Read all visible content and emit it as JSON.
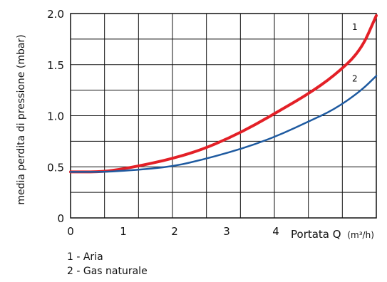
{
  "chart_data": {
    "type": "line",
    "title": "",
    "ylabel": "media perdita di pressione (mbar)",
    "xlabel": "Portata Q",
    "xlabel_unit": "(m³/h)",
    "xlim": [
      0,
      5.8
    ],
    "ylim": [
      0,
      2.0
    ],
    "x_ticks": [
      "0",
      "1",
      "2",
      "3",
      "4"
    ],
    "y_ticks": [
      "0",
      "0.5",
      "1.0",
      "1.5",
      "2.0"
    ],
    "grid": true,
    "series": [
      {
        "name": "1",
        "color": "#e32027",
        "x": [
          0,
          0.6,
          1.0,
          1.5,
          2.0,
          2.5,
          3.0,
          3.5,
          4.0,
          4.5,
          5.0,
          5.5,
          5.8
        ],
        "y": [
          0.45,
          0.45,
          0.48,
          0.53,
          0.59,
          0.67,
          0.78,
          0.91,
          1.06,
          1.21,
          1.39,
          1.63,
          1.98
        ]
      },
      {
        "name": "2",
        "color": "#1e5aa0",
        "x": [
          0,
          0.6,
          1.0,
          1.5,
          2.0,
          2.5,
          3.0,
          3.5,
          4.0,
          4.5,
          5.0,
          5.5,
          5.8
        ],
        "y": [
          0.45,
          0.45,
          0.46,
          0.48,
          0.51,
          0.57,
          0.64,
          0.72,
          0.82,
          0.94,
          1.06,
          1.24,
          1.39
        ]
      }
    ]
  },
  "legend": {
    "item1": "1 - Aria",
    "item2": "2 - Gas naturale"
  }
}
